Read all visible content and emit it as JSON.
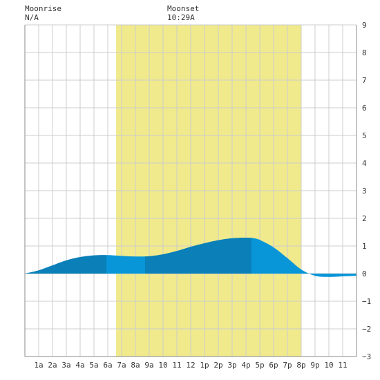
{
  "header": {
    "moonrise_label": "Moonrise",
    "moonrise_time": "N/A",
    "moonset_label": "Moonset",
    "moonset_time": "10:29A"
  },
  "chart_data": {
    "type": "area",
    "title": "",
    "xlabel": "",
    "ylabel": "",
    "xlim": [
      0,
      24
    ],
    "ylim": [
      -3,
      9
    ],
    "grid": true,
    "x_ticks": [
      {
        "x": 1,
        "label": "1a"
      },
      {
        "x": 2,
        "label": "2a"
      },
      {
        "x": 3,
        "label": "3a"
      },
      {
        "x": 4,
        "label": "4a"
      },
      {
        "x": 5,
        "label": "5a"
      },
      {
        "x": 6,
        "label": "6a"
      },
      {
        "x": 7,
        "label": "7a"
      },
      {
        "x": 8,
        "label": "8a"
      },
      {
        "x": 9,
        "label": "9a"
      },
      {
        "x": 10,
        "label": "10"
      },
      {
        "x": 11,
        "label": "11"
      },
      {
        "x": 12,
        "label": "12"
      },
      {
        "x": 13,
        "label": "1p"
      },
      {
        "x": 14,
        "label": "2p"
      },
      {
        "x": 15,
        "label": "3p"
      },
      {
        "x": 16,
        "label": "4p"
      },
      {
        "x": 17,
        "label": "5p"
      },
      {
        "x": 18,
        "label": "6p"
      },
      {
        "x": 19,
        "label": "7p"
      },
      {
        "x": 20,
        "label": "8p"
      },
      {
        "x": 21,
        "label": "9p"
      },
      {
        "x": 22,
        "label": "10"
      },
      {
        "x": 23,
        "label": "11"
      }
    ],
    "y_ticks": [
      -3,
      -2,
      -1,
      0,
      1,
      2,
      3,
      4,
      5,
      6,
      7,
      8,
      9
    ],
    "daylight": {
      "start": 6.6,
      "end": 20.0,
      "color": "#f0ea8c"
    },
    "tide": {
      "x": [
        0,
        1,
        2,
        3,
        4,
        5,
        6,
        7,
        8,
        9,
        10,
        11,
        12,
        13,
        14,
        15,
        16,
        16.6,
        17,
        18,
        19,
        20,
        21,
        22,
        23,
        24
      ],
      "y": [
        0.0,
        0.12,
        0.3,
        0.48,
        0.6,
        0.66,
        0.67,
        0.64,
        0.62,
        0.63,
        0.7,
        0.82,
        0.97,
        1.1,
        1.21,
        1.28,
        1.3,
        1.28,
        1.22,
        0.95,
        0.56,
        0.15,
        -0.08,
        -0.12,
        -0.1,
        -0.08
      ]
    },
    "bands": [
      {
        "start": 0,
        "end": 5.9,
        "color": "#0a7fb8"
      },
      {
        "start": 5.9,
        "end": 8.7,
        "color": "#0896d8"
      },
      {
        "start": 8.7,
        "end": 16.4,
        "color": "#0a7fb8"
      },
      {
        "start": 16.4,
        "end": 24,
        "color": "#0896d8"
      }
    ],
    "colors": {
      "grid": "#cccccc",
      "axis": "#888888",
      "plot_bg": "#ffffff"
    }
  }
}
